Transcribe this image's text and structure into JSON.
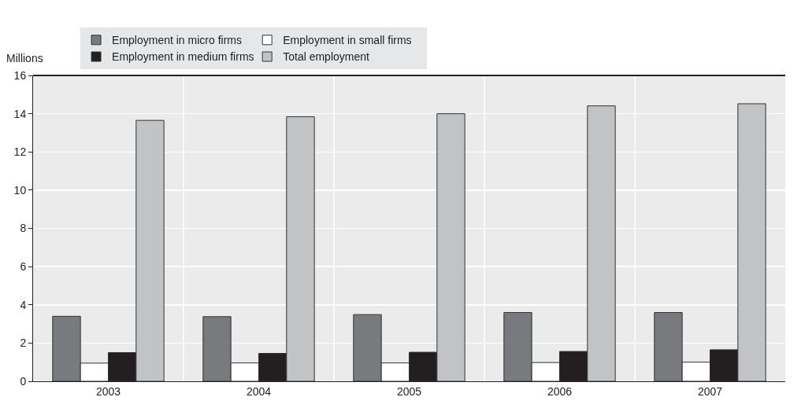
{
  "chart_data": {
    "type": "bar",
    "ylabel": "Millions",
    "categories": [
      "2003",
      "2004",
      "2005",
      "2006",
      "2007"
    ],
    "series": [
      {
        "name": "Employment in micro firms",
        "color": "#797a7e",
        "values": [
          3.4,
          3.38,
          3.49,
          3.6,
          3.6
        ]
      },
      {
        "name": "Employment in small firms",
        "color": "#ffffff",
        "values": [
          0.95,
          0.96,
          0.96,
          0.98,
          1.0
        ]
      },
      {
        "name": "Employment in medium firms",
        "color": "#231f20",
        "values": [
          1.5,
          1.46,
          1.52,
          1.56,
          1.65
        ]
      },
      {
        "name": "Total employment",
        "color": "#c2c3c5",
        "values": [
          13.65,
          13.84,
          14.0,
          14.41,
          14.52
        ]
      }
    ],
    "ylim": [
      0,
      16
    ],
    "yticks": [
      0,
      2,
      4,
      6,
      8,
      10,
      12,
      14,
      16
    ],
    "grid": true,
    "legend": "top"
  }
}
